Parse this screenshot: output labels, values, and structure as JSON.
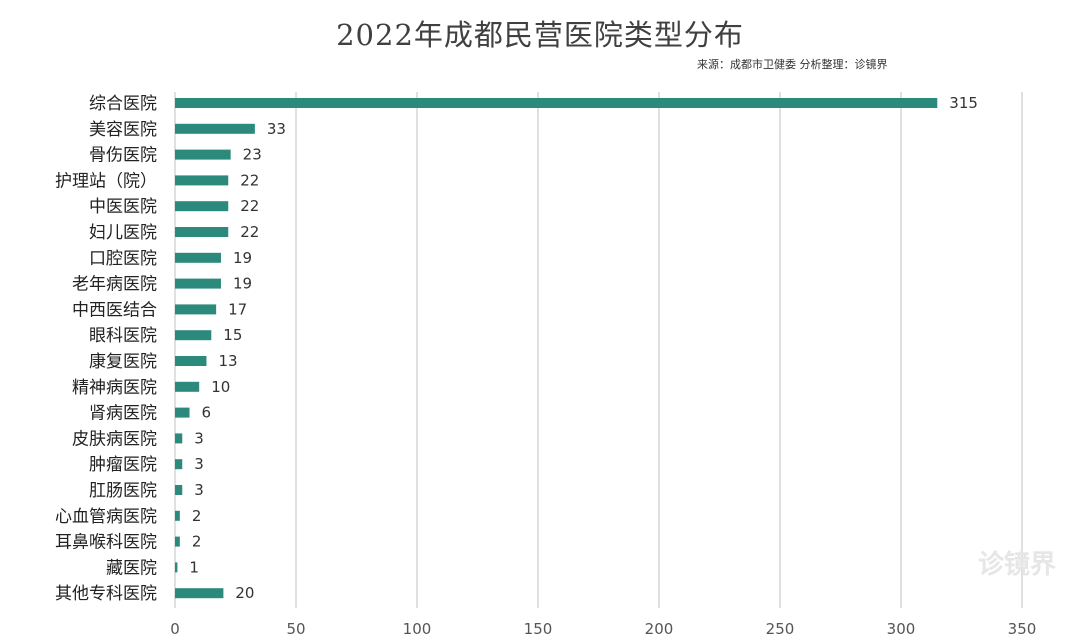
{
  "chart_data": {
    "type": "bar",
    "orientation": "horizontal",
    "title": "2022年成都民营医院类型分布",
    "subtitle": "来源：成都市卫健委 分析整理：诊镜界",
    "categories": [
      "综合医院",
      "美容医院",
      "骨伤医院",
      "护理站（院）",
      "中医医院",
      "妇儿医院",
      "口腔医院",
      "老年病医院",
      "中西医结合",
      "眼科医院",
      "康复医院",
      "精神病医院",
      "肾病医院",
      "皮肤病医院",
      "肿瘤医院",
      "肛肠医院",
      "心血管病医院",
      "耳鼻喉科医院",
      "藏医院",
      "其他专科医院"
    ],
    "values": [
      315,
      33,
      23,
      22,
      22,
      22,
      19,
      19,
      17,
      15,
      13,
      10,
      6,
      3,
      3,
      3,
      2,
      2,
      1,
      20
    ],
    "xlim": [
      0,
      350
    ],
    "xticks": [
      0,
      50,
      100,
      150,
      200,
      250,
      300,
      350
    ],
    "grid": "vertical",
    "bar_color": "#2c8a7c",
    "xlabel": "",
    "ylabel": ""
  },
  "watermark": "诊镜界"
}
